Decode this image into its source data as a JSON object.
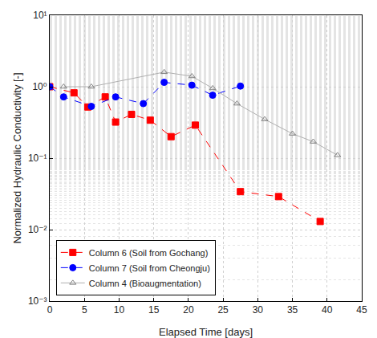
{
  "chart_data": {
    "type": "line",
    "x_label": "Elapsed Time [days]",
    "y_label": "Normalized Hydraulic Conductivity [-]",
    "log": "y",
    "grid": true,
    "legend": "lower left",
    "xlim": [
      0,
      45
    ],
    "xticks": [
      0,
      5,
      10,
      15,
      20,
      25,
      30,
      35,
      40,
      45
    ],
    "ylim": [
      0.001,
      10
    ],
    "yticks": [
      {
        "value": 0.001,
        "label": "10⁻³"
      },
      {
        "value": 0.01,
        "label": "10⁻²"
      },
      {
        "value": 0.1,
        "label": "10⁻¹"
      },
      {
        "value": 1,
        "label": "10⁰"
      },
      {
        "value": 10,
        "label": "10¹"
      }
    ],
    "series": [
      {
        "name": "Column 6 (Soil from Gochang)",
        "color": "#ff0000",
        "marker": "square",
        "line_style": "dash",
        "x": [
          0,
          3.5,
          5.5,
          8,
          9.5,
          11.8,
          14.5,
          17.5,
          21,
          27.5,
          33,
          39
        ],
        "values": [
          1.0,
          0.82,
          0.52,
          0.72,
          0.32,
          0.41,
          0.34,
          0.2,
          0.29,
          0.034,
          0.029,
          0.013
        ]
      },
      {
        "name": "Column 7 (Soil from Cheongju)",
        "color": "#0000ff",
        "marker": "circle",
        "line_style": "dash",
        "x": [
          0,
          2,
          6,
          9.5,
          13.5,
          16.5,
          20.5,
          23.5,
          27.5
        ],
        "values": [
          1.0,
          0.72,
          0.53,
          0.72,
          0.58,
          1.15,
          1.05,
          0.76,
          1.02
        ]
      },
      {
        "name": "Column 4 (Bioaugmentation)",
        "color": "#808080",
        "marker": "triangle-open",
        "line_style": "solid",
        "x": [
          2,
          6,
          16.5,
          20.5,
          23.5,
          27,
          31,
          35,
          38,
          41.5
        ],
        "values": [
          1.0,
          1.0,
          1.6,
          1.4,
          0.95,
          0.58,
          0.35,
          0.22,
          0.17,
          0.11
        ]
      }
    ]
  }
}
